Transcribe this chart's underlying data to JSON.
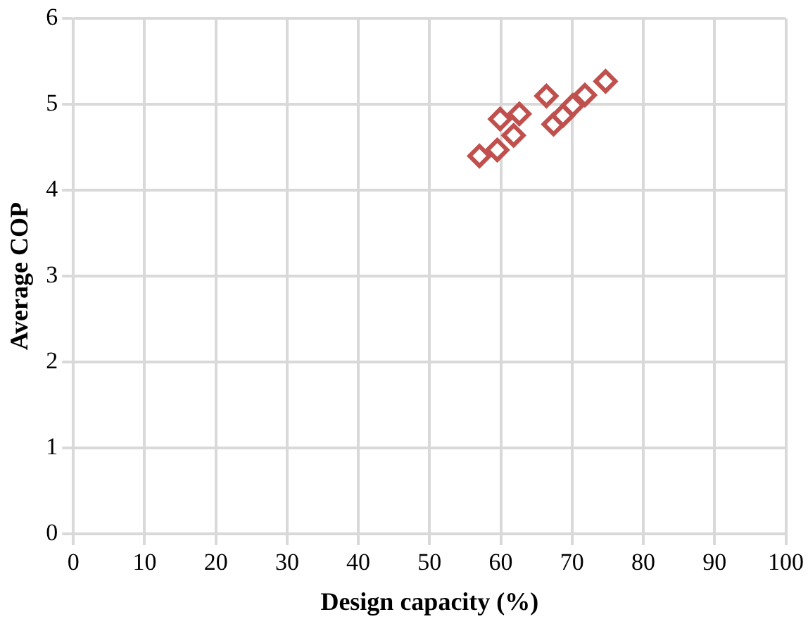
{
  "chart_data": {
    "type": "scatter",
    "xlabel": "Design capacity (%)",
    "ylabel": "Average COP",
    "x": [
      57.0,
      59.5,
      59.9,
      62.6,
      61.8,
      66.4,
      67.4,
      68.7,
      70.1,
      71.8,
      74.7
    ],
    "series": [
      {
        "color": "#c0504d",
        "values": [
          4.4,
          4.47,
          4.83,
          4.89,
          4.64,
          5.1,
          4.77,
          4.87,
          4.99,
          5.11,
          5.27
        ]
      }
    ],
    "xlim": [
      0,
      100
    ],
    "xticks": [
      0,
      10,
      20,
      30,
      40,
      50,
      60,
      70,
      80,
      90,
      100
    ],
    "ylim": [
      0,
      6
    ],
    "yticks": [
      0,
      1,
      2,
      3,
      4,
      5,
      6
    ],
    "grid": true,
    "marker": "diamond",
    "legend": false
  }
}
